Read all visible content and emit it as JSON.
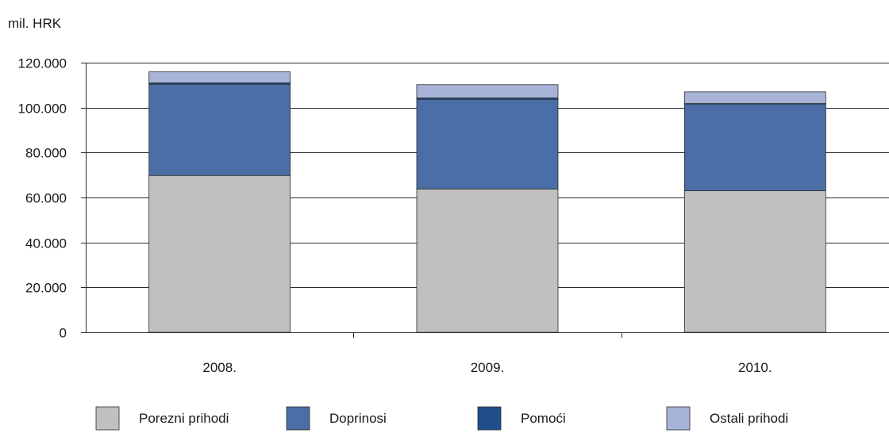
{
  "chart_data": {
    "type": "bar",
    "stacked": true,
    "y_unit_label": "mil. HRK",
    "categories": [
      "2008.",
      "2009.",
      "2010."
    ],
    "series": [
      {
        "name": "Porezni prihodi",
        "color": "#bfc0c1",
        "values": [
          69800,
          63800,
          63000
        ]
      },
      {
        "name": "Doprinosi",
        "color": "#4a6ea5",
        "values": [
          40600,
          39900,
          38600
        ]
      },
      {
        "name": "Pomoći",
        "color": "#1f4e8a",
        "values": [
          600,
          600,
          200
        ]
      },
      {
        "name": "Ostali prihodi",
        "color": "#a7b4d8",
        "values": [
          4900,
          5900,
          5200
        ]
      }
    ],
    "ylim": [
      0,
      120000
    ],
    "yticks": [
      0,
      20000,
      40000,
      60000,
      80000,
      100000,
      120000
    ],
    "ytick_labels": [
      "0",
      "20.000",
      "40.000",
      "60.000",
      "80.000",
      "100.000",
      "120.000"
    ],
    "grid": true,
    "legend_position": "bottom"
  }
}
